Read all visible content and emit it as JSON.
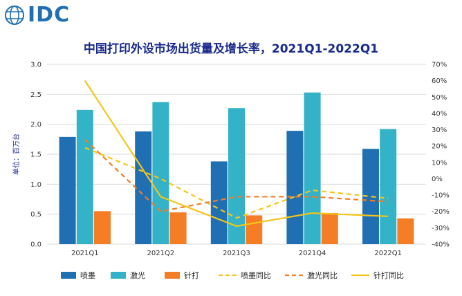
{
  "logo": {
    "text": "IDC"
  },
  "title": "中国打印外设市场出货量及增长率，2021Q1-2022Q1",
  "chart_data": {
    "type": "bar",
    "categories": [
      "2021Q1",
      "2021Q2",
      "2021Q3",
      "2021Q4",
      "2022Q1"
    ],
    "ylabel": "单位：百万台",
    "ylim": [
      0,
      3.0
    ],
    "yticks": [
      "0.0",
      "0.5",
      "1.0",
      "1.5",
      "2.0",
      "2.5",
      "3.0"
    ],
    "y2lim": [
      -40,
      70
    ],
    "y2ticks": [
      "-40%",
      "-30%",
      "-20%",
      "-10%",
      "0%",
      "10%",
      "20%",
      "30%",
      "40%",
      "50%",
      "60%",
      "70%"
    ],
    "grid": true,
    "legend_position": "bottom",
    "series": [
      {
        "name": "喷墨",
        "kind": "bar",
        "axis": "left",
        "color": "#1f6fb2",
        "values": [
          1.79,
          1.88,
          1.38,
          1.89,
          1.59
        ]
      },
      {
        "name": "激光",
        "kind": "bar",
        "axis": "left",
        "color": "#33b2c8",
        "values": [
          2.24,
          2.37,
          2.27,
          2.53,
          1.92
        ]
      },
      {
        "name": "针打",
        "kind": "bar",
        "axis": "left",
        "color": "#f57d25",
        "values": [
          0.55,
          0.53,
          0.48,
          0.52,
          0.43
        ]
      },
      {
        "name": "喷墨同比",
        "kind": "line",
        "dash": "dashed",
        "axis": "right",
        "color": "#f5c518",
        "values": [
          19,
          0,
          -24,
          -7,
          -12
        ]
      },
      {
        "name": "激光同比",
        "kind": "line",
        "dash": "dashed",
        "axis": "right",
        "color": "#f57d25",
        "values": [
          24,
          -20,
          -11,
          -11,
          -14
        ]
      },
      {
        "name": "针打同比",
        "kind": "line",
        "dash": "solid",
        "axis": "right",
        "color": "#f5c518",
        "values": [
          60,
          -11,
          -29,
          -21,
          -23
        ]
      }
    ]
  }
}
